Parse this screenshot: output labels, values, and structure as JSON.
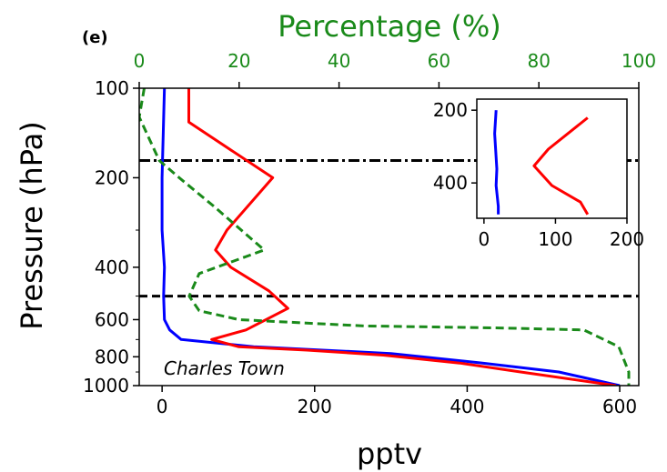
{
  "chart_data": {
    "type": "line",
    "panel_label": "(e)",
    "annotation": "Charles Town",
    "x_bottom": {
      "label": "pptv",
      "lim": [
        -30,
        625
      ],
      "ticks": [
        0,
        200,
        400,
        600
      ]
    },
    "x_top": {
      "label": "Percentage (%)",
      "lim": [
        0,
        100
      ],
      "ticks": [
        0,
        20,
        40,
        60,
        80,
        100
      ],
      "color": "#1a8a1a"
    },
    "y": {
      "label": "Pressure (hPa)",
      "scale": "log",
      "inverted": true,
      "lim": [
        100,
        1000
      ],
      "ticks": [
        100,
        200,
        400,
        600,
        800,
        1000
      ],
      "minor_ticks": [
        300,
        500,
        700,
        900
      ]
    },
    "reference_lines": [
      {
        "y": 175,
        "style": "dashdot",
        "color": "#000000"
      },
      {
        "y": 500,
        "style": "dashed",
        "color": "#000000"
      }
    ],
    "series": [
      {
        "color": "#0000ff",
        "axis": "bottom",
        "style": "solid",
        "points": [
          [
            3,
            100
          ],
          [
            0,
            200
          ],
          [
            0,
            300
          ],
          [
            3,
            400
          ],
          [
            2,
            500
          ],
          [
            3,
            600
          ],
          [
            10,
            650
          ],
          [
            25,
            700
          ],
          [
            120,
            740
          ],
          [
            300,
            780
          ],
          [
            420,
            840
          ],
          [
            520,
            900
          ],
          [
            600,
            1000
          ]
        ]
      },
      {
        "color": "#ff0000",
        "axis": "bottom",
        "style": "solid",
        "points": [
          [
            35,
            100
          ],
          [
            35,
            130
          ],
          [
            145,
            200
          ],
          [
            85,
            300
          ],
          [
            70,
            350
          ],
          [
            90,
            400
          ],
          [
            140,
            480
          ],
          [
            165,
            550
          ],
          [
            110,
            650
          ],
          [
            65,
            700
          ],
          [
            100,
            740
          ],
          [
            190,
            760
          ],
          [
            290,
            790
          ],
          [
            390,
            840
          ],
          [
            470,
            900
          ],
          [
            595,
            1000
          ]
        ]
      },
      {
        "color": "#1a8a1a",
        "axis": "top",
        "style": "dashed",
        "points": [
          [
            1,
            100
          ],
          [
            0,
            125
          ],
          [
            4,
            175
          ],
          [
            8,
            200
          ],
          [
            15,
            250
          ],
          [
            25,
            350
          ],
          [
            12,
            420
          ],
          [
            10,
            500
          ],
          [
            12,
            560
          ],
          [
            20,
            600
          ],
          [
            45,
            630
          ],
          [
            72,
            640
          ],
          [
            89,
            650
          ],
          [
            96,
            740
          ],
          [
            98,
            900
          ],
          [
            98,
            1000
          ]
        ]
      }
    ],
    "inset": {
      "x": {
        "lim": [
          -10,
          200
        ],
        "ticks": [
          0,
          100,
          200
        ]
      },
      "y": {
        "scale": "log",
        "inverted": true,
        "lim": [
          180,
          560
        ],
        "ticks": [
          200,
          400
        ]
      },
      "series": [
        {
          "color": "#0000ff",
          "points": [
            [
              17,
              200
            ],
            [
              15,
              250
            ],
            [
              18,
              350
            ],
            [
              17,
              410
            ],
            [
              20,
              500
            ],
            [
              20,
              540
            ]
          ]
        },
        {
          "color": "#ff0000",
          "points": [
            [
              145,
              215
            ],
            [
              90,
              290
            ],
            [
              70,
              340
            ],
            [
              95,
              410
            ],
            [
              135,
              480
            ],
            [
              145,
              540
            ]
          ]
        }
      ]
    }
  }
}
